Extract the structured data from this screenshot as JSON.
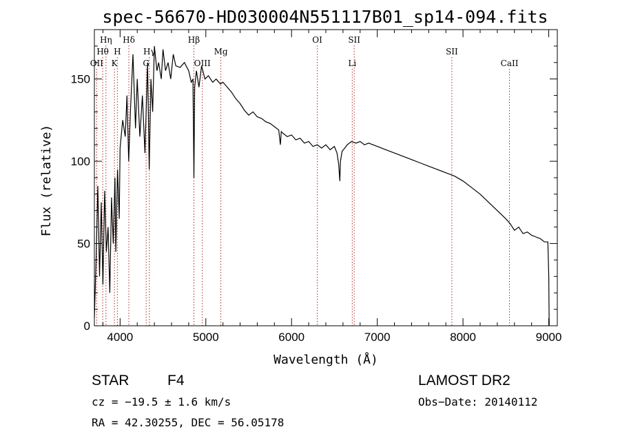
{
  "chart_data": {
    "type": "line",
    "title": "spec-56670-HD030004N551117B01_sp14-094.fits",
    "xlabel": "Wavelength (Å)",
    "ylabel": "Flux (relative)",
    "xlim": [
      3700,
      9100
    ],
    "ylim": [
      0,
      180
    ],
    "xticks": [
      4000,
      5000,
      6000,
      7000,
      8000,
      9000
    ],
    "yticks": [
      0,
      50,
      100,
      150
    ],
    "grid": false,
    "series": [
      {
        "x": [
          3700,
          3720,
          3740,
          3760,
          3780,
          3800,
          3820,
          3840,
          3860,
          3880,
          3900,
          3920,
          3940,
          3950,
          3970,
          3990,
          4000,
          4030,
          4060,
          4080,
          4100,
          4120,
          4150,
          4180,
          4200,
          4230,
          4260,
          4290,
          4320,
          4340,
          4360,
          4380,
          4400,
          4430,
          4450,
          4480,
          4500,
          4530,
          4560,
          4590,
          4620,
          4650,
          4700,
          4750,
          4800,
          4830,
          4850,
          4861,
          4870,
          4890,
          4920,
          4950,
          4990,
          5030,
          5080,
          5120,
          5170,
          5200,
          5250,
          5300,
          5350,
          5400,
          5450,
          5500,
          5550,
          5600,
          5650,
          5700,
          5750,
          5800,
          5850,
          5870,
          5880,
          5900,
          5950,
          6000,
          6050,
          6100,
          6150,
          6200,
          6250,
          6300,
          6350,
          6400,
          6450,
          6500,
          6530,
          6550,
          6563,
          6570,
          6590,
          6620,
          6650,
          6700,
          6750,
          6800,
          6850,
          6900,
          6950,
          7000,
          7100,
          7200,
          7300,
          7400,
          7500,
          7600,
          7700,
          7800,
          7900,
          8000,
          8100,
          8200,
          8300,
          8400,
          8500,
          8550,
          8600,
          8650,
          8700,
          8750,
          8800,
          8850,
          8900,
          8950,
          8990,
          9000,
          9005
        ],
        "values": [
          5,
          40,
          85,
          30,
          75,
          25,
          82,
          45,
          60,
          20,
          78,
          50,
          90,
          45,
          95,
          65,
          108,
          125,
          115,
          140,
          100,
          130,
          165,
          120,
          150,
          115,
          140,
          105,
          160,
          95,
          150,
          130,
          170,
          155,
          160,
          150,
          168,
          155,
          160,
          150,
          165,
          158,
          157,
          160,
          155,
          148,
          150,
          90,
          145,
          155,
          145,
          158,
          150,
          152,
          148,
          150,
          147,
          148,
          145,
          142,
          138,
          135,
          131,
          128,
          130,
          127,
          126,
          124,
          123,
          121,
          119,
          110,
          118,
          117,
          115,
          116,
          113,
          114,
          111,
          112,
          109,
          110,
          108,
          110,
          107,
          109,
          105,
          98,
          88,
          100,
          106,
          108,
          110,
          112,
          111,
          112,
          110,
          111,
          110,
          109,
          107,
          105,
          103,
          101,
          99,
          97,
          95,
          93,
          91,
          88,
          84,
          80,
          75,
          70,
          65,
          62,
          58,
          60,
          56,
          57,
          55,
          54,
          53,
          51,
          51,
          30,
          0
        ]
      }
    ],
    "lines": [
      {
        "label": "OII",
        "x": 3727,
        "tier": 3
      },
      {
        "label": "Hθ",
        "x": 3797,
        "tier": 2
      },
      {
        "label": "Hη",
        "x": 3835,
        "tier": 1
      },
      {
        "label": "K",
        "x": 3934,
        "tier": 3
      },
      {
        "label": "H",
        "x": 3968,
        "tier": 2
      },
      {
        "label": "Hδ",
        "x": 4102,
        "tier": 1
      },
      {
        "label": "G",
        "x": 4304,
        "tier": 3
      },
      {
        "label": "Hγ",
        "x": 4341,
        "tier": 2
      },
      {
        "label": "Hβ",
        "x": 4861,
        "tier": 1
      },
      {
        "label": "OIII",
        "x": 4959,
        "tier": 3
      },
      {
        "label": "Mg",
        "x": 5175,
        "tier": 2
      },
      {
        "label": "OI",
        "x": 6300,
        "tier": 1
      },
      {
        "label": "Li",
        "x": 6708,
        "tier": 3
      },
      {
        "label": "SII",
        "x": 6731,
        "tier": 1
      },
      {
        "label": "SII",
        "x": 7870,
        "tier": 2
      },
      {
        "label": "CaII",
        "x": 8542,
        "tier": 3
      }
    ]
  },
  "info": {
    "object_type": "STAR",
    "subclass": "F4",
    "survey": "LAMOST DR2",
    "cz": "cz = −19.5 ± 1.6 km/s",
    "obs_date": "Obs−Date: 20140112",
    "coords": "RA =  42.30255, DEC =  56.05178"
  },
  "colors": {
    "line_marker": "#aa2222",
    "spectrum": "#000000"
  }
}
